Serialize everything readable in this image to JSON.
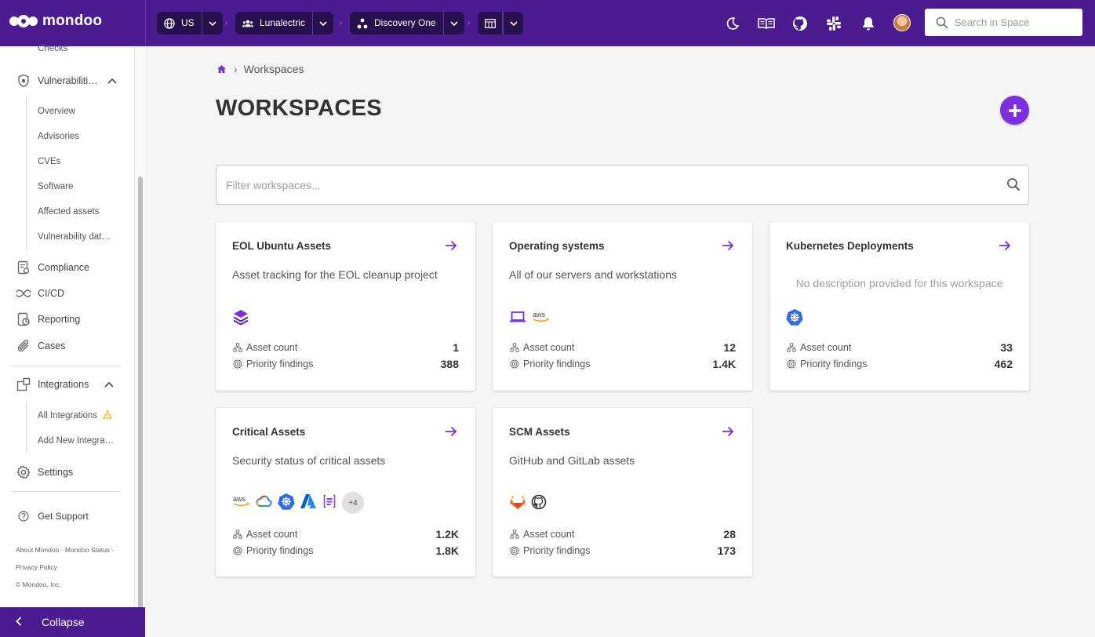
{
  "brand": {
    "name": "mondoo"
  },
  "topbar": {
    "region": "US",
    "organization": "Lunalectric",
    "space": "Discovery One",
    "search_placeholder": "Search in Space"
  },
  "sidebar": {
    "partial_item": "Checks",
    "vulnerabilities": {
      "label": "Vulnerabiliti…",
      "items": [
        "Overview",
        "Advisories",
        "CVEs",
        "Software",
        "Affected assets",
        "Vulnerability dat…"
      ]
    },
    "compliance": "Compliance",
    "cicd": "CI/CD",
    "reporting": "Reporting",
    "cases": "Cases",
    "integrations": {
      "label": "Integrations",
      "items": [
        "All Integrations",
        "Add New Integra…"
      ]
    },
    "settings": "Settings",
    "support": "Get Support",
    "footer": {
      "about": "About Mondoo",
      "status": "Mondoo Status",
      "privacy": "Privacy Policy",
      "copyright": "© Mondoo, Inc."
    },
    "collapse": "Collapse"
  },
  "breadcrumb": {
    "current": "Workspaces"
  },
  "page": {
    "title": "WORKSPACES",
    "filter_placeholder": "Filter workspaces..."
  },
  "stat_labels": {
    "asset_count": "Asset count",
    "priority_findings": "Priority findings"
  },
  "workspaces": [
    {
      "name": "EOL Ubuntu Assets",
      "description": "Asset tracking for the EOL cleanup project",
      "asset_count": "1",
      "priority_findings": "388",
      "tech": [
        "layers-icon"
      ]
    },
    {
      "name": "Operating systems",
      "description": "All of our servers and workstations",
      "asset_count": "12",
      "priority_findings": "1.4K",
      "tech": [
        "laptop-icon",
        "aws-icon"
      ]
    },
    {
      "name": "Kubernetes Deployments",
      "description": "No description provided for this workspace",
      "asset_count": "33",
      "priority_findings": "462",
      "tech": [
        "kubernetes-icon"
      ]
    },
    {
      "name": "Critical Assets",
      "description": "Security status of critical assets",
      "asset_count": "1.2K",
      "priority_findings": "1.8K",
      "tech": [
        "aws-icon",
        "gcp-icon",
        "kubernetes-icon",
        "azure-icon",
        "api-icon"
      ],
      "more": "+4"
    },
    {
      "name": "SCM Assets",
      "description": "GitHub and GitLab assets",
      "asset_count": "28",
      "priority_findings": "173",
      "tech": [
        "gitlab-icon",
        "github-icon"
      ]
    }
  ],
  "colors": {
    "primary": "#4a1c8f",
    "accent": "#7b2fe0",
    "warning": "#f2b300"
  }
}
